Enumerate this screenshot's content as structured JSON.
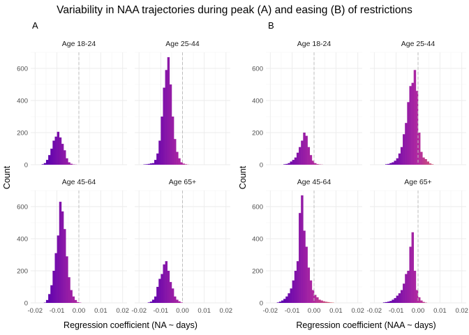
{
  "title": "Variability in NAA trajectories during peak (A) and easing (B) of restrictions",
  "colors": {
    "low": "#5a00b0",
    "mid": "#b22aa0",
    "high": "#f28c3c",
    "zero_line": "#bdbdbd",
    "grid": "#ebebeb"
  },
  "chart_data": [
    {
      "type": "bar",
      "tag": "A",
      "xlabel": "Regression coefficient (NA ~ days)",
      "ylabel": "Count",
      "xlim": [
        -0.022,
        0.022
      ],
      "ylim": [
        0,
        700
      ],
      "xticks": [
        -0.02,
        -0.01,
        0.0,
        0.01,
        0.02
      ],
      "xtick_labels": [
        "-0.02",
        "-0.01",
        "0.00",
        "0.01",
        "0.02"
      ],
      "yticks": [
        0,
        200,
        400,
        600
      ],
      "yticks_labels": [
        "0",
        "200",
        "400",
        "600"
      ],
      "bin_width": 0.001,
      "panels": [
        {
          "label": "Age 18-24",
          "bin_start": -0.017,
          "counts": [
            3,
            10,
            30,
            60,
            100,
            150,
            175,
            205,
            170,
            130,
            90,
            40,
            15,
            6,
            2,
            1
          ]
        },
        {
          "label": "Age 25-44",
          "bin_start": -0.018,
          "counts": [
            2,
            3,
            5,
            8,
            10,
            30,
            70,
            150,
            300,
            480,
            590,
            670,
            500,
            300,
            160,
            80,
            40,
            15,
            7,
            3,
            1
          ]
        },
        {
          "label": "Age 45-64",
          "bin_start": -0.016,
          "counts": [
            2,
            18,
            55,
            110,
            200,
            310,
            420,
            630,
            570,
            460,
            290,
            160,
            80,
            40,
            18,
            5,
            2
          ]
        },
        {
          "label": "Age 65+",
          "bin_start": -0.016,
          "counts": [
            3,
            8,
            20,
            40,
            100,
            150,
            180,
            240,
            260,
            200,
            130,
            90,
            40,
            20,
            10,
            3
          ]
        }
      ]
    },
    {
      "type": "bar",
      "tag": "B",
      "xlabel": "Regression coefficient (NAA ~ days)",
      "ylabel": "Count",
      "xlim": [
        -0.022,
        0.022
      ],
      "ylim": [
        0,
        700
      ],
      "xticks": [
        -0.02,
        -0.01,
        0.0,
        0.01,
        0.02
      ],
      "xtick_labels": [
        "-0.02",
        "-0.01",
        "0.00",
        "0.01",
        "0.02"
      ],
      "yticks": [
        0,
        200,
        400,
        600
      ],
      "yticks_labels": [
        "0",
        "200",
        "400",
        "600"
      ],
      "bin_width": 0.001,
      "panels": [
        {
          "label": "Age 18-24",
          "bin_start": -0.014,
          "counts": [
            3,
            5,
            10,
            20,
            30,
            45,
            75,
            110,
            150,
            200,
            180,
            110,
            60,
            25,
            10,
            4,
            2,
            1
          ]
        },
        {
          "label": "Age 25-44",
          "bin_start": -0.015,
          "counts": [
            3,
            5,
            10,
            15,
            25,
            40,
            70,
            110,
            190,
            260,
            390,
            490,
            510,
            590,
            460,
            200,
            80,
            45,
            35,
            20,
            8,
            3
          ]
        },
        {
          "label": "Age 45-64",
          "bin_start": -0.017,
          "counts": [
            3,
            8,
            15,
            25,
            40,
            60,
            90,
            140,
            200,
            260,
            560,
            670,
            450,
            350,
            220,
            140,
            80,
            50,
            35,
            20,
            15,
            10,
            7,
            5,
            3,
            2
          ]
        },
        {
          "label": "Age 65+",
          "bin_start": -0.016,
          "counts": [
            3,
            5,
            8,
            12,
            20,
            30,
            45,
            60,
            80,
            120,
            180,
            200,
            350,
            440,
            200,
            80,
            35,
            15,
            6,
            2
          ]
        }
      ]
    }
  ]
}
